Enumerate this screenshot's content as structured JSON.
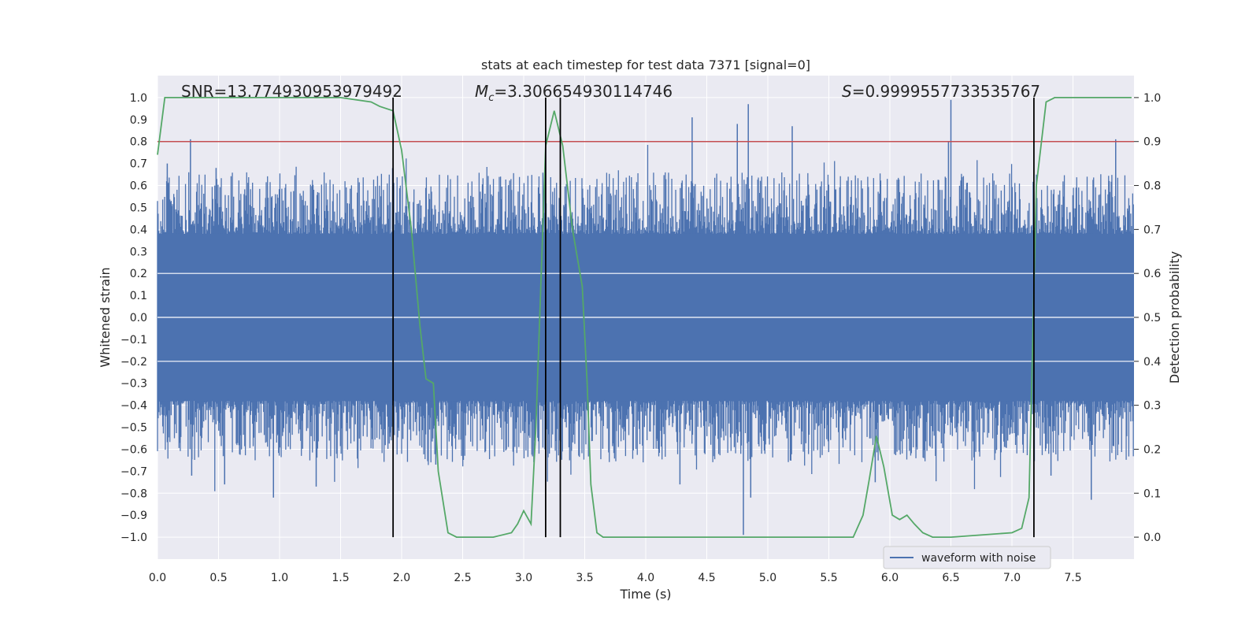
{
  "chart_data": {
    "type": "line",
    "title": "stats at each timestep for test data 7371 [signal=0]",
    "xlabel": "Time (s)",
    "ylabel": "Whitened strain",
    "y2label": "Detection probability",
    "xlim": [
      0,
      8
    ],
    "ylim": [
      -1.1,
      1.1
    ],
    "y2lim": [
      -0.05,
      1.05
    ],
    "xticks": [
      "0.0",
      "0.5",
      "1.0",
      "1.5",
      "2.0",
      "2.5",
      "3.0",
      "3.5",
      "4.0",
      "4.5",
      "5.0",
      "5.5",
      "6.0",
      "6.5",
      "7.0",
      "7.5"
    ],
    "yticks": [
      "1.0",
      "0.9",
      "0.8",
      "0.7",
      "0.6",
      "0.5",
      "0.4",
      "0.3",
      "0.2",
      "0.1",
      "0.0",
      "-0.1",
      "-0.2",
      "-0.3",
      "-0.4",
      "-0.5",
      "-0.6",
      "-0.7",
      "-0.8",
      "-0.9",
      "-1.0"
    ],
    "y2ticks": [
      "1.0",
      "0.9",
      "0.8",
      "0.7",
      "0.6",
      "0.5",
      "0.4",
      "0.3",
      "0.2",
      "0.1",
      "0.0"
    ],
    "grid": true,
    "legend": {
      "position": "bottom-right",
      "entries": [
        "waveform with noise"
      ]
    },
    "annotations": {
      "snr": "SNR=13.774930953979492",
      "mc_symbol": "M",
      "mc_sub": "c",
      "mc_value": "=3.306654930114746",
      "s_symbol": "S",
      "s_value": "=0.9999557733535767"
    },
    "threshold_y2": 0.9,
    "vertical_lines_x": [
      1.93,
      3.18,
      3.3,
      7.18
    ],
    "series": [
      {
        "name": "waveform with noise",
        "style": "noise",
        "color": "#4c72b0",
        "envelope": 0.38,
        "spikes": [
          {
            "x": 0.27,
            "y": 0.81
          },
          {
            "x": 0.08,
            "y": 0.7
          },
          {
            "x": 0.48,
            "y": 0.68
          },
          {
            "x": 0.95,
            "y": -0.82
          },
          {
            "x": 1.3,
            "y": -0.77
          },
          {
            "x": 0.55,
            "y": -0.76
          },
          {
            "x": 0.28,
            "y": -0.72
          },
          {
            "x": 3.18,
            "y": 0.86
          },
          {
            "x": 4.38,
            "y": 0.91
          },
          {
            "x": 4.75,
            "y": 0.88
          },
          {
            "x": 4.84,
            "y": 0.97
          },
          {
            "x": 4.8,
            "y": -0.99
          },
          {
            "x": 4.86,
            "y": -0.82
          },
          {
            "x": 5.2,
            "y": 0.87
          },
          {
            "x": 6.5,
            "y": 0.99
          },
          {
            "x": 6.48,
            "y": 0.8
          },
          {
            "x": 7.85,
            "y": 0.81
          },
          {
            "x": 7.65,
            "y": -0.83
          },
          {
            "x": 5.88,
            "y": -0.75
          },
          {
            "x": 2.28,
            "y": -0.67
          },
          {
            "x": 4.28,
            "y": -0.76
          },
          {
            "x": 7.32,
            "y": -0.72
          }
        ]
      },
      {
        "name": "detection probability",
        "style": "line",
        "axis": "y2",
        "color": "#55a868",
        "x": [
          0.0,
          0.06,
          0.12,
          0.3,
          0.6,
          1.0,
          1.5,
          1.75,
          1.82,
          1.93,
          2.0,
          2.08,
          2.15,
          2.2,
          2.26,
          2.3,
          2.38,
          2.45,
          2.6,
          2.75,
          2.9,
          2.95,
          3.0,
          3.06,
          3.1,
          3.18,
          3.25,
          3.32,
          3.4,
          3.48,
          3.52,
          3.55,
          3.6,
          3.65,
          3.8,
          4.0,
          4.5,
          5.0,
          5.5,
          5.7,
          5.78,
          5.83,
          5.89,
          5.95,
          6.02,
          6.08,
          6.14,
          6.2,
          6.27,
          6.35,
          6.5,
          7.0,
          7.08,
          7.14,
          7.2,
          7.28,
          7.35,
          7.5,
          7.98
        ],
        "y": [
          0.87,
          1.0,
          1.0,
          1.0,
          1.0,
          1.0,
          1.0,
          0.99,
          0.98,
          0.97,
          0.88,
          0.7,
          0.48,
          0.36,
          0.35,
          0.15,
          0.01,
          0.0,
          0.0,
          0.0,
          0.01,
          0.03,
          0.06,
          0.03,
          0.25,
          0.89,
          0.97,
          0.89,
          0.7,
          0.57,
          0.35,
          0.12,
          0.01,
          0.0,
          0.0,
          0.0,
          0.0,
          0.0,
          0.0,
          0.0,
          0.05,
          0.13,
          0.23,
          0.16,
          0.05,
          0.04,
          0.05,
          0.03,
          0.01,
          0.0,
          0.0,
          0.01,
          0.02,
          0.09,
          0.8,
          0.99,
          1.0,
          1.0,
          1.0
        ]
      }
    ]
  }
}
